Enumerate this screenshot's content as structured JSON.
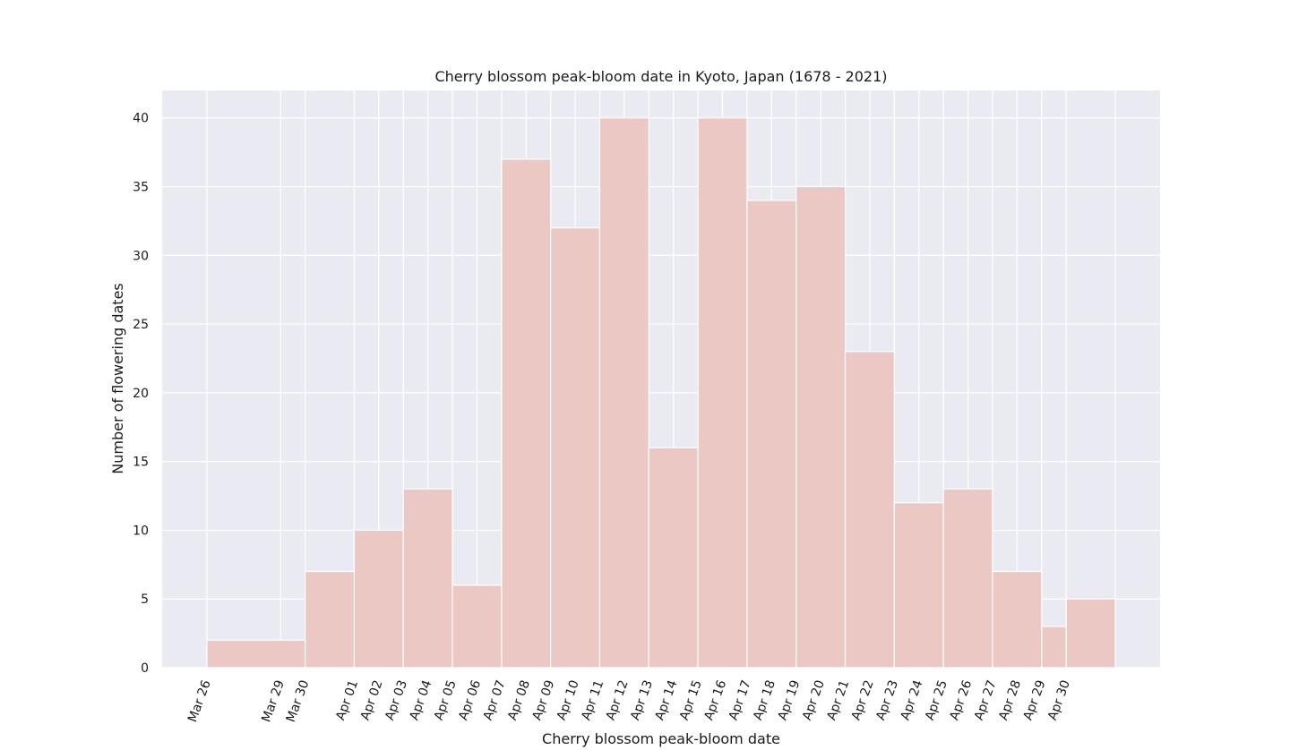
{
  "chart_data": {
    "type": "bar",
    "title": "Cherry blossom peak-bloom date in Kyoto, Japan (1678 - 2021)",
    "xlabel": "Cherry blossom peak-bloom date",
    "ylabel": "Number of flowering dates",
    "ylim": [
      0,
      42
    ],
    "yticks": [
      0,
      5,
      10,
      15,
      20,
      25,
      30,
      35,
      40
    ],
    "grid": true,
    "tick_labels": [
      "Mar 26",
      "Mar 29",
      "Mar 30",
      "Apr 01",
      "Apr 02",
      "Apr 03",
      "Apr 04",
      "Apr 05",
      "Apr 06",
      "Apr 07",
      "Apr 08",
      "Apr 09",
      "Apr 10",
      "Apr 11",
      "Apr 12",
      "Apr 13",
      "Apr 14",
      "Apr 15",
      "Apr 16",
      "Apr 17",
      "Apr 18",
      "Apr 19",
      "Apr 20",
      "Apr 21",
      "Apr 22",
      "Apr 23",
      "Apr 24",
      "Apr 25",
      "Apr 26",
      "Apr 27",
      "Apr 28",
      "Apr 29",
      "Apr 30"
    ],
    "bins": [
      {
        "from": "Mar 26",
        "to": "Mar 30",
        "value": 2
      },
      {
        "from": "Mar 30",
        "to": "Apr 01",
        "value": 7
      },
      {
        "from": "Apr 01",
        "to": "Apr 03",
        "value": 10
      },
      {
        "from": "Apr 03",
        "to": "Apr 05",
        "value": 13
      },
      {
        "from": "Apr 05",
        "to": "Apr 07",
        "value": 6
      },
      {
        "from": "Apr 07",
        "to": "Apr 09",
        "value": 37
      },
      {
        "from": "Apr 09",
        "to": "Apr 11",
        "value": 32
      },
      {
        "from": "Apr 11",
        "to": "Apr 13",
        "value": 40
      },
      {
        "from": "Apr 13",
        "to": "Apr 15",
        "value": 16
      },
      {
        "from": "Apr 15",
        "to": "Apr 17",
        "value": 40
      },
      {
        "from": "Apr 17",
        "to": "Apr 19",
        "value": 34
      },
      {
        "from": "Apr 19",
        "to": "Apr 21",
        "value": 35
      },
      {
        "from": "Apr 21",
        "to": "Apr 23",
        "value": 23
      },
      {
        "from": "Apr 23",
        "to": "Apr 25",
        "value": 12
      },
      {
        "from": "Apr 25",
        "to": "Apr 27",
        "value": 13
      },
      {
        "from": "Apr 27",
        "to": "Apr 29",
        "value": 7
      },
      {
        "from": "Apr 29",
        "to": "Apr 30",
        "value": 3
      },
      {
        "from": "Apr 30",
        "to": "May 02",
        "value": 5
      }
    ],
    "colors": {
      "bar": "#ebc8c3",
      "bar_edge": "#ffffff",
      "plot_background": "#eaeaf2",
      "grid": "#ffffff"
    }
  }
}
